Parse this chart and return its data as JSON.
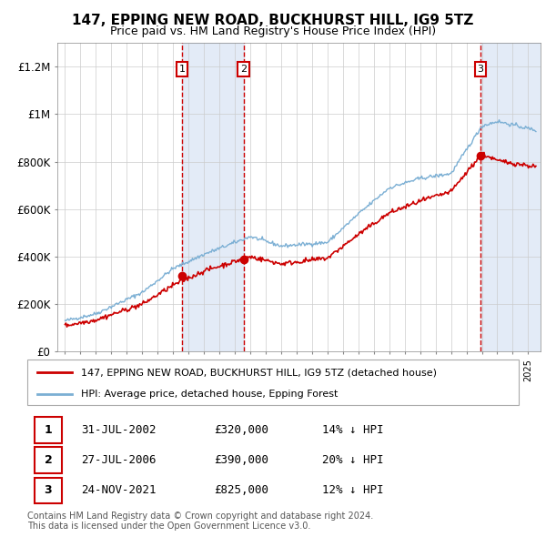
{
  "title": "147, EPPING NEW ROAD, BUCKHURST HILL, IG9 5TZ",
  "subtitle": "Price paid vs. HM Land Registry's House Price Index (HPI)",
  "ylim": [
    0,
    1300000
  ],
  "xlim_start": 1994.5,
  "xlim_end": 2025.8,
  "yticks": [
    0,
    200000,
    400000,
    600000,
    800000,
    1000000,
    1200000
  ],
  "ytick_labels": [
    "£0",
    "£200K",
    "£400K",
    "£600K",
    "£800K",
    "£1M",
    "£1.2M"
  ],
  "sale_dates": [
    2002.57,
    2006.57,
    2021.9
  ],
  "sale_prices": [
    320000,
    390000,
    825000
  ],
  "sale_labels": [
    "1",
    "2",
    "3"
  ],
  "sale_date_strs": [
    "31-JUL-2002",
    "27-JUL-2006",
    "24-NOV-2021"
  ],
  "sale_price_strs": [
    "£320,000",
    "£390,000",
    "£825,000"
  ],
  "sale_hpi_strs": [
    "14% ↓ HPI",
    "20% ↓ HPI",
    "12% ↓ HPI"
  ],
  "legend_line1": "147, EPPING NEW ROAD, BUCKHURST HILL, IG9 5TZ (detached house)",
  "legend_line2": "HPI: Average price, detached house, Epping Forest",
  "footer1": "Contains HM Land Registry data © Crown copyright and database right 2024.",
  "footer2": "This data is licensed under the Open Government Licence v3.0.",
  "red_color": "#cc0000",
  "blue_color": "#7bafd4",
  "shading_color": "#dce6f5",
  "grid_color": "#cccccc"
}
